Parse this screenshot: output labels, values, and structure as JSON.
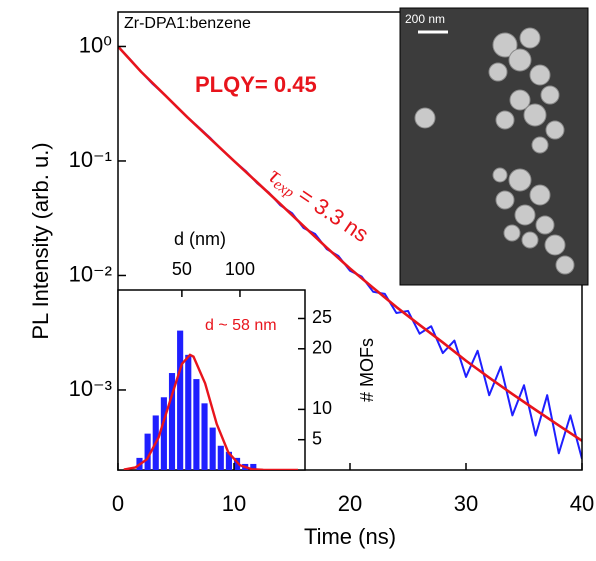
{
  "chart_data": [
    {
      "type": "line",
      "title": "Zr-DPA1:benzene",
      "x_label": "Time (ns)",
      "y_label": "PL Intensity (arb. u.)",
      "log_y": true,
      "xlim": [
        0,
        40
      ],
      "xticks": [
        0,
        10,
        20,
        30,
        40
      ],
      "ylim": [
        0.0002,
        2
      ],
      "yticks": [
        {
          "value": 1,
          "label": "10⁰"
        },
        {
          "value": 0.1,
          "label": "10⁻¹"
        },
        {
          "value": 0.01,
          "label": "10⁻²"
        },
        {
          "value": 0.001,
          "label": "10⁻³"
        }
      ],
      "series": [
        {
          "color": "#1f1fff",
          "x": [
            0,
            1,
            2,
            3,
            4,
            5,
            6,
            7,
            8,
            9,
            10,
            11,
            12,
            13,
            14,
            15,
            16,
            17,
            18,
            19,
            20,
            21,
            22,
            23,
            24,
            25,
            26,
            27,
            28,
            29,
            30,
            31,
            32,
            33,
            34,
            35,
            36,
            37,
            38,
            39,
            40
          ],
          "values": [
            1.0,
            0.78,
            0.6,
            0.47,
            0.38,
            0.3,
            0.24,
            0.195,
            0.157,
            0.124,
            0.1,
            0.082,
            0.064,
            0.053,
            0.041,
            0.035,
            0.026,
            0.023,
            0.017,
            0.0148,
            0.011,
            0.0098,
            0.0072,
            0.0069,
            0.0047,
            0.0049,
            0.0031,
            0.0036,
            0.0021,
            0.0027,
            0.0013,
            0.0022,
            0.0009,
            0.0016,
            0.0006,
            0.0011,
            0.0004,
            0.0009,
            0.00028,
            0.0006,
            0.00025
          ]
        },
        {
          "color": "#e8141c",
          "x": [
            0,
            2,
            4,
            6,
            8,
            10,
            12,
            14,
            16,
            18,
            20,
            22,
            24,
            26,
            28,
            30,
            32,
            34,
            36,
            38,
            40
          ],
          "values": [
            1,
            0.6,
            0.38,
            0.24,
            0.155,
            0.1,
            0.065,
            0.042,
            0.027,
            0.0175,
            0.0115,
            0.0078,
            0.0053,
            0.0037,
            0.0026,
            0.0018,
            0.00128,
            0.00092,
            0.00067,
            0.00049,
            0.00036
          ]
        }
      ],
      "plqy_label": "PLQY= 0.45",
      "tau_label": {
        "symbol": "τ",
        "subscript": "exp",
        "text": " = 3.3 ns"
      },
      "image_scale_label": "200 nm"
    },
    {
      "type": "histogram",
      "x_label": "d (nm)",
      "y_label": "# MOFs",
      "xlim": [
        -5,
        156
      ],
      "xticks": [
        50,
        100
      ],
      "ylim": [
        0,
        29.7
      ],
      "yticks": [
        5,
        10,
        20,
        25
      ],
      "bins": [
        10,
        17,
        24,
        31,
        38,
        45,
        52,
        59,
        66,
        73,
        80,
        87,
        94,
        101,
        108,
        115
      ],
      "counts": [
        2,
        6,
        9,
        12,
        16,
        23,
        19,
        15,
        11,
        7,
        4,
        3,
        2,
        1,
        1
      ],
      "color": "#1f1fff",
      "fit": {
        "color": "#e8141c",
        "x": [
          0,
          10,
          20,
          30,
          40,
          50,
          57,
          60,
          70,
          80,
          90,
          100,
          110,
          120,
          130,
          140,
          150
        ],
        "values": [
          0.07,
          0.42,
          1.78,
          5.4,
          11.5,
          17.5,
          19,
          18.7,
          14.3,
          7.6,
          2.9,
          0.78,
          0.14,
          0.02,
          0,
          0,
          0
        ]
      },
      "annotation": "d ~ 58 nm"
    }
  ]
}
